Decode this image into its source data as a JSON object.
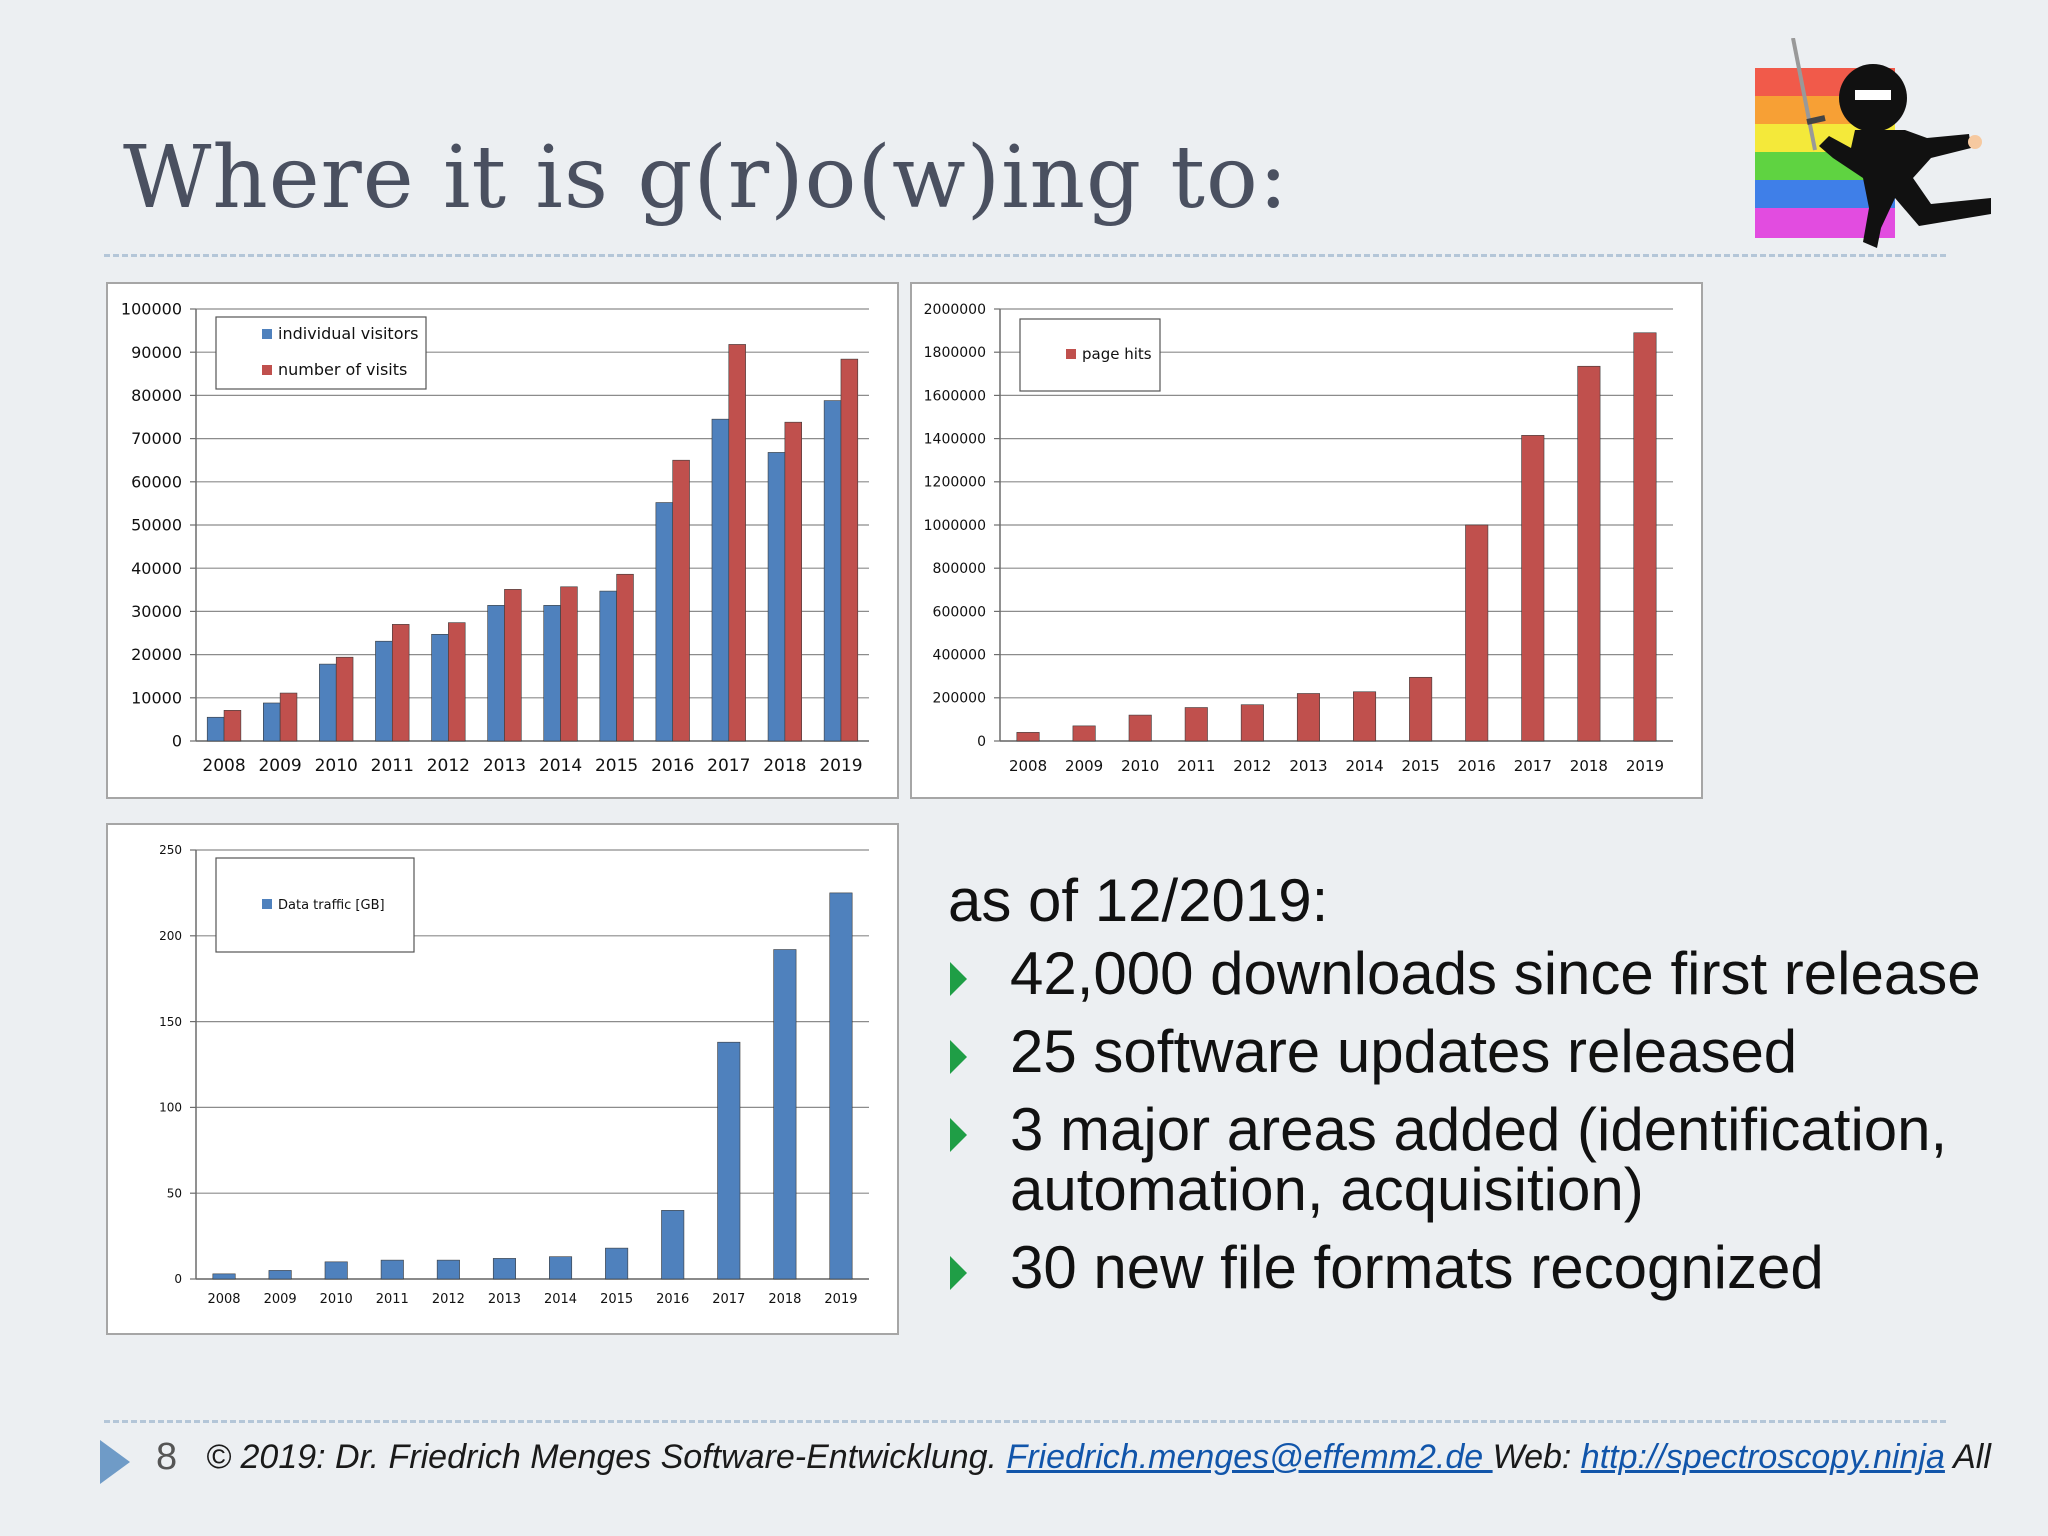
{
  "slide": {
    "title": "Where it is g(r)o(w)ing to:",
    "status_heading": "as of 12/2019:",
    "bullets": [
      "42,000 downloads since first release",
      "25 software updates released",
      "3 major areas added (identification, automation, acquisition)",
      "30 new file formats recognized"
    ],
    "footer": {
      "page_number": "8",
      "copyright": "© 2019:   Dr. Friedrich Menges Software-Entwicklung. ",
      "email": "Friedrich.menges@effemm2.de ",
      "web_label": " Web:  ",
      "web_url": "http://spectroscopy.ninja",
      "trailing": "  All"
    },
    "colors": {
      "blue": "#4f81bd",
      "red": "#c0504d",
      "bullet": "#1f9e46",
      "link": "#1155aa"
    },
    "logo_icon": "ninja-rainbow-logo-icon"
  },
  "chart_data": [
    {
      "type": "bar",
      "categories": [
        "2008",
        "2009",
        "2010",
        "2011",
        "2012",
        "2013",
        "2014",
        "2015",
        "2016",
        "2017",
        "2018",
        "2019"
      ],
      "series": [
        {
          "name": "individual visitors",
          "color": "#4f81bd",
          "values": [
            5500,
            8800,
            17800,
            23100,
            24700,
            31400,
            31400,
            34700,
            55200,
            74500,
            66800,
            78800
          ]
        },
        {
          "name": "number of visits",
          "color": "#c0504d",
          "values": [
            7100,
            11100,
            19400,
            27000,
            27400,
            35100,
            35700,
            38600,
            65000,
            91800,
            73800,
            88400
          ]
        }
      ],
      "ylim": [
        0,
        100000
      ],
      "yticks": [
        0,
        10000,
        20000,
        30000,
        40000,
        50000,
        60000,
        70000,
        80000,
        90000,
        100000
      ],
      "grid": true,
      "legend": "top-left"
    },
    {
      "type": "bar",
      "categories": [
        "2008",
        "2009",
        "2010",
        "2011",
        "2012",
        "2013",
        "2014",
        "2015",
        "2016",
        "2017",
        "2018",
        "2019"
      ],
      "series": [
        {
          "name": "page hits",
          "color": "#c0504d",
          "values": [
            40000,
            70000,
            120000,
            155000,
            168000,
            220000,
            228000,
            295000,
            1000000,
            1415000,
            1735000,
            1890000
          ]
        }
      ],
      "ylim": [
        0,
        2000000
      ],
      "yticks": [
        0,
        200000,
        400000,
        600000,
        800000,
        1000000,
        1200000,
        1400000,
        1600000,
        1800000,
        2000000
      ],
      "grid": true,
      "legend": "top-left"
    },
    {
      "type": "bar",
      "categories": [
        "2008",
        "2009",
        "2010",
        "2011",
        "2012",
        "2013",
        "2014",
        "2015",
        "2016",
        "2017",
        "2018",
        "2019"
      ],
      "series": [
        {
          "name": "Data traffic [GB]",
          "color": "#4f81bd",
          "values": [
            3,
            5,
            10,
            11,
            11,
            12,
            13,
            18,
            40,
            138,
            192,
            225
          ]
        }
      ],
      "ylim": [
        0,
        250
      ],
      "yticks": [
        0,
        50,
        100,
        150,
        200,
        250
      ],
      "grid": true,
      "legend": "top-left"
    }
  ]
}
